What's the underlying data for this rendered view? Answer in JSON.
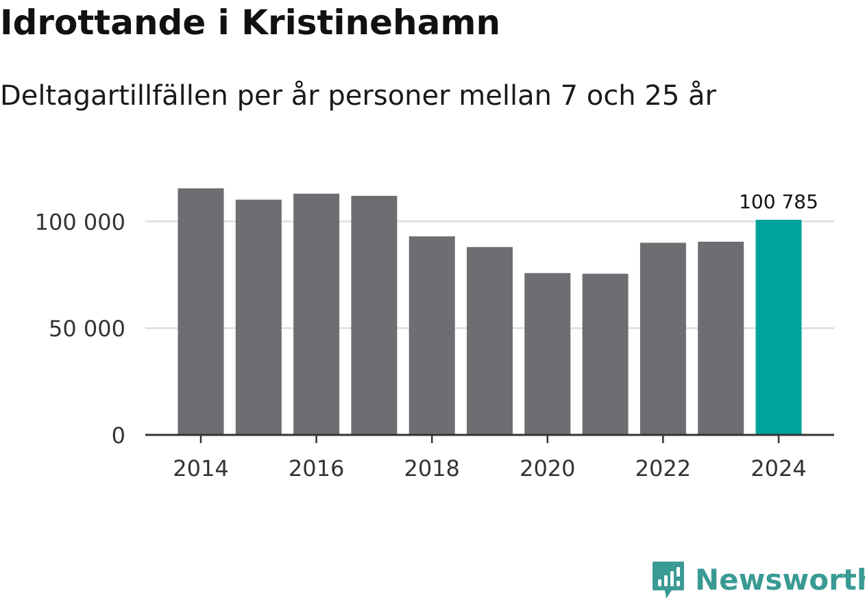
{
  "header": {
    "title": "Idrottande i Kristinehamn",
    "subtitle": "Deltagartillfällen per år personer mellan 7 och 25 år"
  },
  "chart_data": {
    "type": "bar",
    "title": "Idrottande i Kristinehamn",
    "subtitle": "Deltagartillfällen per år personer mellan 7 och 25 år",
    "xlabel": "",
    "ylabel": "",
    "categories": [
      "2014",
      "2015",
      "2016",
      "2017",
      "2018",
      "2019",
      "2020",
      "2021",
      "2022",
      "2023",
      "2024"
    ],
    "values": [
      115500,
      110200,
      113000,
      112000,
      93000,
      88000,
      75800,
      75500,
      90000,
      90500,
      100785
    ],
    "ylim": [
      0,
      115500
    ],
    "yticks": [
      0,
      50000,
      100000
    ],
    "ytick_labels": [
      "0",
      "50 000",
      "100 000"
    ],
    "xtick_labels": [
      "2014",
      "2016",
      "2018",
      "2020",
      "2022",
      "2024"
    ],
    "highlight_index": 10,
    "annotation": "100 785",
    "grid": true,
    "colors": {
      "bar": "#6e6d72",
      "highlight": "#00a39a",
      "grid": "#dddddd",
      "axis": "#333333",
      "tick_text": "#333333"
    }
  },
  "branding": {
    "name": "Newsworthy",
    "icon": "newsworthy-logo-icon",
    "color": "#3a9a94"
  }
}
